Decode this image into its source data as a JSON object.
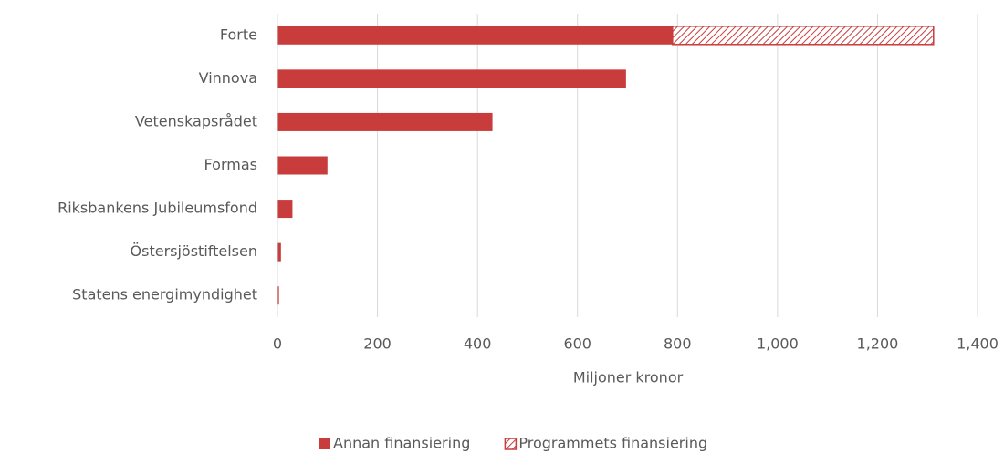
{
  "chart_data": {
    "type": "stacked-bar-horizontal",
    "categories": [
      "Forte",
      "Vinnova",
      "Vetenskapsrådet",
      "Formas",
      "Riksbankens Jubileumsfond",
      "Östersjöstiftelsen",
      "Statens energimyndighet"
    ],
    "series": [
      {
        "name": "Annan finansiering",
        "color": "#c83c3c",
        "fill": "solid",
        "values": [
          790,
          697,
          430,
          100,
          30,
          7,
          3
        ]
      },
      {
        "name": "Programmets finansiering",
        "color": "#c83c3c",
        "fill": "hatch",
        "values": [
          522,
          0,
          0,
          0,
          0,
          0,
          0
        ]
      }
    ],
    "xlabel": "Miljoner kronor",
    "xlim": [
      0,
      1400
    ],
    "xticks": [
      0,
      200,
      400,
      600,
      800,
      {
        "value": 1000,
        "label": "1,000"
      },
      {
        "value": 1200,
        "label": "1,200"
      },
      {
        "value": 1400,
        "label": "1,400"
      }
    ],
    "grid": true,
    "legend": "bottom"
  }
}
